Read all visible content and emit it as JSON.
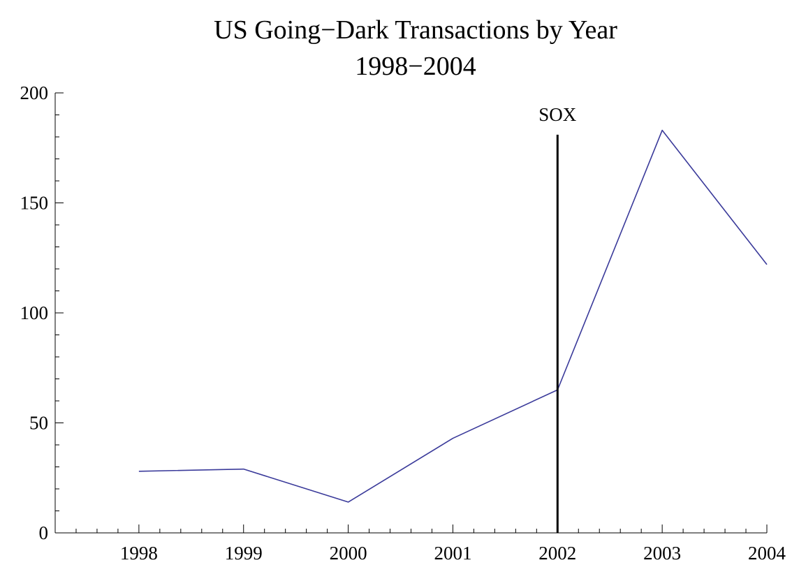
{
  "chart_data": {
    "type": "line",
    "title": "US Going−Dark Transactions by Year",
    "subtitle": "1998−2004",
    "xlabel": "",
    "ylabel": "",
    "x": [
      1998,
      1999,
      2000,
      2001,
      2002,
      2003,
      2004
    ],
    "x_tick_labels": [
      "1998",
      "1999",
      "2000",
      "2001",
      "2002",
      "2003",
      "2004"
    ],
    "y_tick_labels": [
      "0",
      "50",
      "100",
      "150",
      "200"
    ],
    "y_ticks": [
      0,
      50,
      100,
      150,
      200
    ],
    "xlim": [
      1997.2,
      2004
    ],
    "ylim": [
      0,
      200
    ],
    "grid": false,
    "series": [
      {
        "values": [
          28,
          29,
          14,
          43,
          65,
          183,
          122
        ],
        "color": "#3a3a9a"
      }
    ],
    "annotations": [
      {
        "type": "vline",
        "x": 2002,
        "y_top": 181,
        "label": "SOX",
        "color": "#000000"
      }
    ]
  }
}
